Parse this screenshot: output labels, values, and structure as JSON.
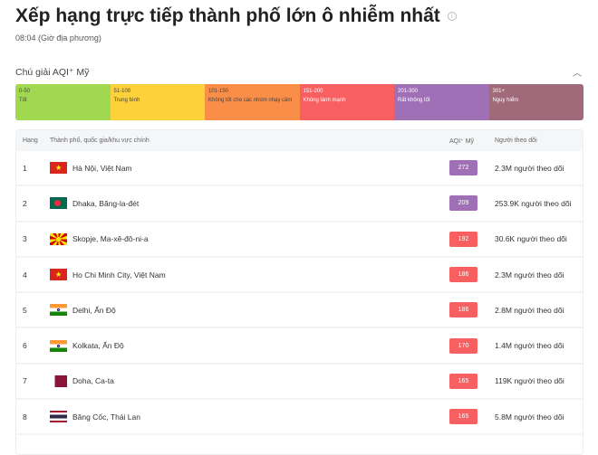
{
  "header": {
    "title": "Xếp hạng trực tiếp thành phố lớn ô nhiễm nhất",
    "subtitle": "08:04 (Giờ địa phương)"
  },
  "legend": {
    "title": "Chú giải AQI⁺ Mỹ",
    "items": [
      {
        "range": "0-50",
        "label": "Tốt",
        "color": "#a0d94f"
      },
      {
        "range": "51-100",
        "label": "Trung bình",
        "color": "#fcd13a"
      },
      {
        "range": "101-150",
        "label": "Không tốt cho các nhóm nhạy cảm",
        "color": "#fa8e48"
      },
      {
        "range": "151-200",
        "label": "Không lành mạnh",
        "color": "#f75f60"
      },
      {
        "range": "201-300",
        "label": "Rất không tốt",
        "color": "#a070b6"
      },
      {
        "range": "301+",
        "label": "Nguy hiểm",
        "color": "#a06a7b"
      }
    ]
  },
  "table": {
    "headers": [
      "Hạng",
      "Thành phố, quốc gia/khu vực chính",
      "AQI⁺ Mỹ",
      "Người theo dõi"
    ],
    "rows": [
      {
        "rank": "1",
        "city": "Hà Nội, Việt Nam",
        "flag": "vn",
        "aqi": "272",
        "color": "#a070b6",
        "followers": "2.3M người theo dõi"
      },
      {
        "rank": "2",
        "city": "Dhaka, Băng-la-đét",
        "flag": "bd",
        "aqi": "209",
        "color": "#a070b6",
        "followers": "253.9K người theo dõi"
      },
      {
        "rank": "3",
        "city": "Skopje, Ma-xê-đô-ni-a",
        "flag": "mk",
        "aqi": "192",
        "color": "#f75f60",
        "followers": "30.6K người theo dõi"
      },
      {
        "rank": "4",
        "city": "Ho Chi Minh City, Việt Nam",
        "flag": "vn",
        "aqi": "186",
        "color": "#f75f60",
        "followers": "2.3M người theo dõi"
      },
      {
        "rank": "5",
        "city": "Delhi, Ấn Độ",
        "flag": "in",
        "aqi": "186",
        "color": "#f75f60",
        "followers": "2.8M người theo dõi"
      },
      {
        "rank": "6",
        "city": "Kolkata, Ấn Độ",
        "flag": "in",
        "aqi": "170",
        "color": "#f75f60",
        "followers": "1.4M người theo dõi"
      },
      {
        "rank": "7",
        "city": "Doha, Ca-ta",
        "flag": "qa",
        "aqi": "165",
        "color": "#f75f60",
        "followers": "119K người theo dõi"
      },
      {
        "rank": "8",
        "city": "Băng Cốc, Thái Lan",
        "flag": "th",
        "aqi": "165",
        "color": "#f75f60",
        "followers": "5.8M người theo dõi"
      }
    ]
  }
}
